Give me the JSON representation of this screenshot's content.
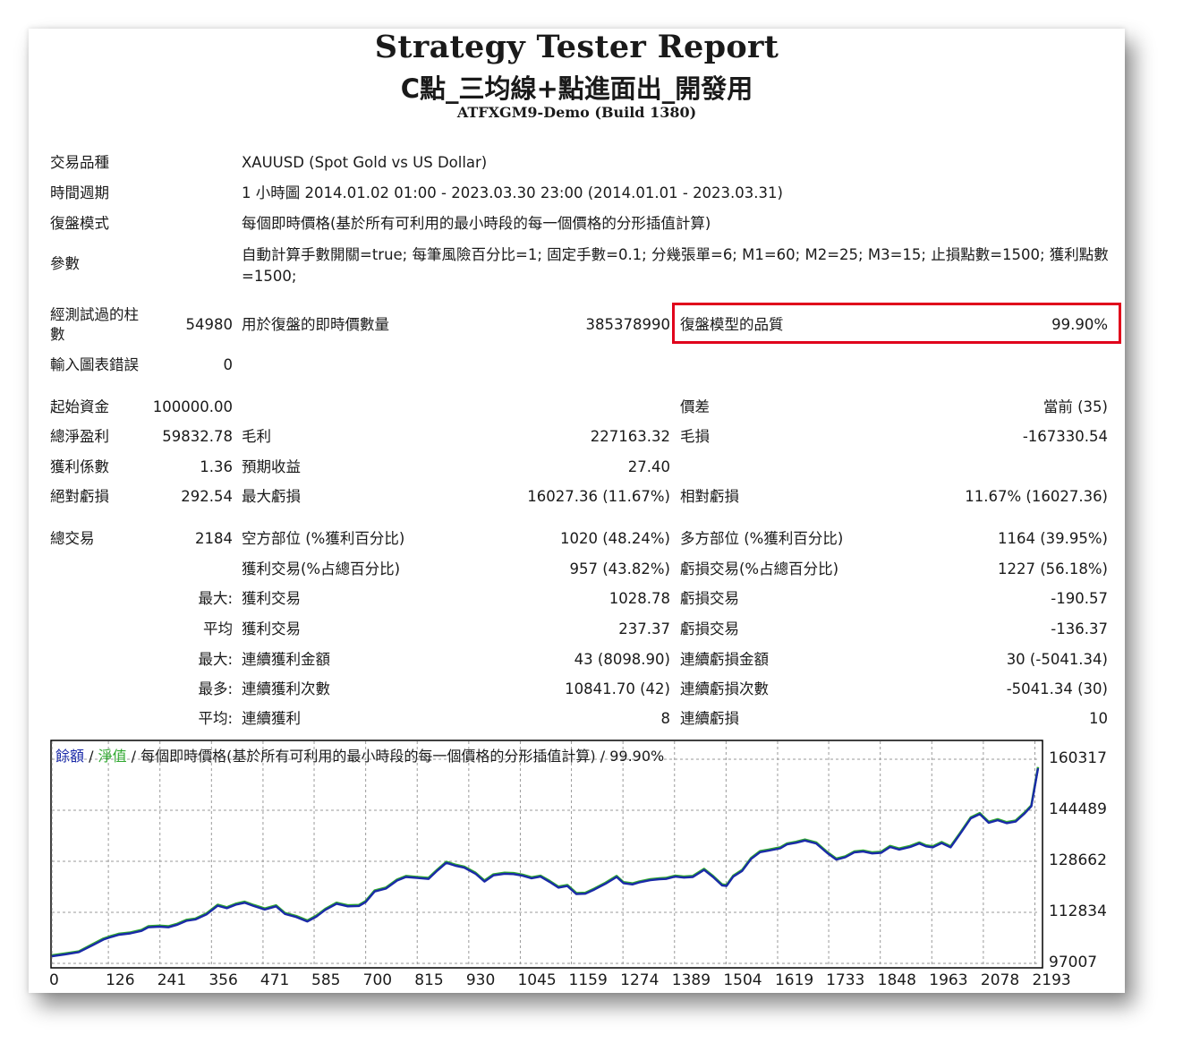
{
  "header": {
    "title": "Strategy Tester Report",
    "subtitle": "C點_三均線+點進面出_開發用",
    "server": "ATFXGM9-Demo (Build 1380)"
  },
  "info": {
    "symbol_label": "交易品種",
    "symbol_value": "XAUUSD (Spot Gold vs US Dollar)",
    "period_label": "時間週期",
    "period_value": "1 小時圖 2014.01.02 01:00 - 2023.03.30 23:00 (2014.01.01 - 2023.03.31)",
    "model_label": "復盤模式",
    "model_value": "每個即時價格(基於所有可利用的最小時段的每一個價格的分形插值計算)",
    "params_label": "參數",
    "params_value": "自動計算手數開關=true; 每筆風險百分比=1; 固定手數=0.1; 分幾張單=6; M1=60; M2=25; M3=15; 止損點數=1500; 獲利點數=1500;"
  },
  "quality": {
    "bars_label": "經測試過的柱數",
    "bars_value": "54980",
    "ticks_label": "用於復盤的即時價數量",
    "ticks_value": "385378990",
    "quality_label": "復盤模型的品質",
    "quality_value": "99.90%",
    "errors_label": "輸入圖表錯誤",
    "errors_value": "0"
  },
  "stats": {
    "deposit_label": "起始資金",
    "deposit_value": "100000.00",
    "spread_label": "價差",
    "spread_value": "當前 (35)",
    "netprofit_label": "總淨盈利",
    "netprofit_value": "59832.78",
    "grossprofit_label": "毛利",
    "grossprofit_value": "227163.32",
    "grossloss_label": "毛損",
    "grossloss_value": "-167330.54",
    "pf_label": "獲利係數",
    "pf_value": "1.36",
    "expected_label": "預期收益",
    "expected_value": "27.40",
    "absdd_label": "絕對虧損",
    "absdd_value": "292.54",
    "maxdd_label": "最大虧損",
    "maxdd_value": "16027.36 (11.67%)",
    "reldd_label": "相對虧損",
    "reldd_value": "11.67% (16027.36)",
    "trades_label": "總交易",
    "trades_value": "2184",
    "short_label": "空方部位 (%獲利百分比)",
    "short_value": "1020 (48.24%)",
    "long_label": "多方部位 (%獲利百分比)",
    "long_value": "1164 (39.95%)",
    "wins_label": "獲利交易(%占總百分比)",
    "wins_value": "957 (43.82%)",
    "losses_label": "虧損交易(%占總百分比)",
    "losses_value": "1227 (56.18%)",
    "max1_label": "最大:",
    "largest_win_label": "獲利交易",
    "largest_win_value": "1028.78",
    "largest_loss_label": "虧損交易",
    "largest_loss_value": "-190.57",
    "avg1_label": "平均",
    "avg_win_label": "獲利交易",
    "avg_win_value": "237.37",
    "avg_loss_label": "虧損交易",
    "avg_loss_value": "-136.37",
    "max2_label": "最大:",
    "cons_wins_label": "連續獲利金額",
    "cons_wins_value": "43 (8098.90)",
    "cons_losses_label": "連續虧損金額",
    "cons_losses_value": "30 (-5041.34)",
    "max3_label": "最多:",
    "max_cons_profit_label": "連續獲利次數",
    "max_cons_profit_value": "10841.70 (42)",
    "max_cons_loss_label": "連續虧損次數",
    "max_cons_loss_value": "-5041.34 (30)",
    "avg2_label": "平均:",
    "avg_cons_wins_label": "連續獲利",
    "avg_cons_wins_value": "8",
    "avg_cons_losses_label": "連續虧損",
    "avg_cons_losses_value": "10"
  },
  "chart_legend": {
    "balance": "餘額",
    "sep1": " / ",
    "equity": "淨值",
    "rest": " / 每個即時價格(基於所有可利用的最小時段的每一個價格的分形插值計算) / 99.90%"
  },
  "colors": {
    "balance": "#1a2aa8",
    "equity": "#2fa82f",
    "highlight": "#e0001b"
  },
  "chart_data": {
    "type": "line",
    "title": "",
    "xlabel": "",
    "ylabel": "",
    "x_ticks": [
      "0",
      "126",
      "241",
      "356",
      "471",
      "585",
      "700",
      "815",
      "930",
      "1045",
      "1159",
      "1274",
      "1389",
      "1504",
      "1619",
      "1733",
      "1848",
      "1963",
      "2078",
      "2193"
    ],
    "y_ticks": [
      "160317",
      "144489",
      "128662",
      "112834",
      "97007"
    ],
    "xlim": [
      0,
      2200
    ],
    "ylim": [
      97007,
      160317
    ],
    "grid": true,
    "series": [
      {
        "name": "餘額",
        "x": [
          0,
          30,
          60,
          90,
          115,
          130,
          150,
          175,
          200,
          215,
          240,
          260,
          280,
          300,
          320,
          345,
          370,
          390,
          410,
          430,
          450,
          475,
          500,
          520,
          545,
          570,
          590,
          610,
          635,
          660,
          685,
          700,
          720,
          745,
          770,
          790,
          815,
          840,
          860,
          880,
          900,
          920,
          945,
          965,
          985,
          1010,
          1030,
          1050,
          1070,
          1090,
          1110,
          1130,
          1150,
          1170,
          1190,
          1210,
          1235,
          1260,
          1275,
          1295,
          1310,
          1335,
          1355,
          1370,
          1390,
          1410,
          1430,
          1455,
          1475,
          1495,
          1505,
          1520,
          1540,
          1560,
          1580,
          1600,
          1625,
          1640,
          1660,
          1680,
          1705,
          1730,
          1750,
          1770,
          1790,
          1810,
          1830,
          1850,
          1870,
          1890,
          1915,
          1935,
          1950,
          1965,
          1985,
          2005,
          2025,
          2050,
          2070,
          2090,
          2110,
          2130,
          2150,
          2170,
          2185,
          2200
        ],
        "y": [
          99200,
          99800,
          100500,
          102600,
          104400,
          105100,
          105900,
          106300,
          107100,
          108200,
          108400,
          108200,
          109000,
          110200,
          110600,
          112200,
          114900,
          114100,
          115200,
          115800,
          114800,
          113700,
          114700,
          112300,
          111400,
          110000,
          111500,
          113600,
          115500,
          114700,
          114800,
          116000,
          119300,
          120200,
          122700,
          123800,
          123500,
          123200,
          125800,
          128200,
          127300,
          126700,
          124800,
          122400,
          124300,
          124800,
          124700,
          124200,
          123400,
          123900,
          122300,
          120500,
          121000,
          118500,
          118600,
          119900,
          121700,
          123800,
          121900,
          121500,
          122100,
          122800,
          123100,
          123200,
          123900,
          123600,
          123800,
          126000,
          123800,
          121200,
          121000,
          123900,
          125700,
          129400,
          131500,
          132000,
          132700,
          133900,
          134400,
          135100,
          134200,
          131200,
          129200,
          129900,
          131400,
          131700,
          131100,
          131300,
          133100,
          132300,
          133100,
          134200,
          133300,
          133000,
          134300,
          133000,
          136900,
          142000,
          143300,
          140600,
          141400,
          140500,
          141000,
          143500,
          145700,
          157500
        ]
      },
      {
        "name": "淨值",
        "x": [
          0,
          30,
          60,
          90,
          115,
          130,
          150,
          175,
          200,
          215,
          240,
          260,
          280,
          300,
          320,
          345,
          370,
          390,
          410,
          430,
          450,
          475,
          500,
          520,
          545,
          570,
          590,
          610,
          635,
          660,
          685,
          700,
          720,
          745,
          770,
          790,
          815,
          840,
          860,
          880,
          900,
          920,
          945,
          965,
          985,
          1010,
          1030,
          1050,
          1070,
          1090,
          1110,
          1130,
          1150,
          1170,
          1190,
          1210,
          1235,
          1260,
          1275,
          1295,
          1310,
          1335,
          1355,
          1370,
          1390,
          1410,
          1430,
          1455,
          1475,
          1495,
          1505,
          1520,
          1540,
          1560,
          1580,
          1600,
          1625,
          1640,
          1660,
          1680,
          1705,
          1730,
          1750,
          1770,
          1790,
          1810,
          1830,
          1850,
          1870,
          1890,
          1915,
          1935,
          1950,
          1965,
          1985,
          2005,
          2025,
          2050,
          2070,
          2090,
          2110,
          2130,
          2150,
          2170,
          2185,
          2200
        ],
        "y": [
          99500,
          100100,
          100700,
          102900,
          104700,
          105400,
          106200,
          106600,
          107400,
          108500,
          108700,
          108500,
          109300,
          110500,
          110900,
          112500,
          115200,
          114400,
          115500,
          116100,
          115100,
          114000,
          115000,
          112600,
          111700,
          110300,
          111800,
          113900,
          115800,
          115000,
          115100,
          116300,
          119600,
          120500,
          123000,
          124100,
          123800,
          123500,
          126100,
          128500,
          127600,
          127000,
          125100,
          122700,
          124600,
          125100,
          125000,
          124500,
          123700,
          124200,
          122600,
          120800,
          121300,
          118800,
          118900,
          120200,
          122000,
          124100,
          122200,
          121800,
          122400,
          123100,
          123400,
          123500,
          124200,
          123900,
          124100,
          126300,
          124100,
          121500,
          121300,
          124200,
          126000,
          129700,
          131800,
          132300,
          133000,
          134200,
          134700,
          135400,
          134500,
          131500,
          129500,
          130200,
          131700,
          132000,
          131400,
          131600,
          133400,
          132600,
          133400,
          134500,
          133600,
          133300,
          134600,
          133300,
          137200,
          142300,
          143600,
          140900,
          141700,
          140800,
          141300,
          143800,
          146000,
          157900
        ]
      }
    ]
  }
}
